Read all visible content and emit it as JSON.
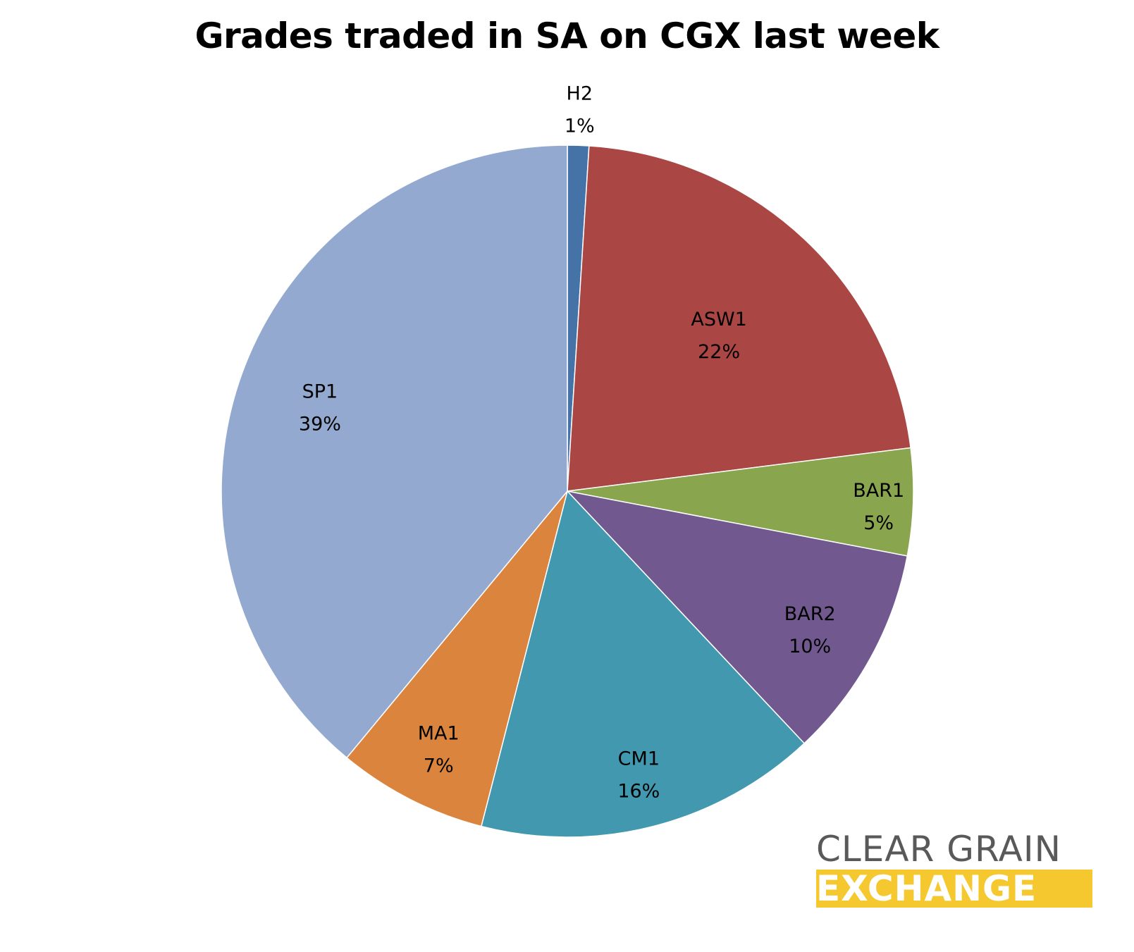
{
  "chart_data": {
    "type": "pie",
    "title": "Grades traded in SA on CGX last week",
    "start_angle_deg": 0,
    "direction": "clockwise",
    "slices": [
      {
        "label": "H2",
        "value": 1,
        "display": "1%",
        "color": "#4572a7"
      },
      {
        "label": "ASW1",
        "value": 22,
        "display": "22%",
        "color": "#aa4643"
      },
      {
        "label": "BAR1",
        "value": 5,
        "display": "5%",
        "color": "#89a54e"
      },
      {
        "label": "BAR2",
        "value": 10,
        "display": "10%",
        "color": "#71588f"
      },
      {
        "label": "CM1",
        "value": 16,
        "display": "16%",
        "color": "#4198af"
      },
      {
        "label": "MA1",
        "value": 7,
        "display": "7%",
        "color": "#db843d"
      },
      {
        "label": "SP1",
        "value": 39,
        "display": "39%",
        "color": "#93a9cf"
      }
    ]
  },
  "logo": {
    "line1": "CLEAR GRAIN",
    "line2": "EXCHANGE",
    "accent_color": "#f5c830",
    "text_color": "#595959"
  }
}
